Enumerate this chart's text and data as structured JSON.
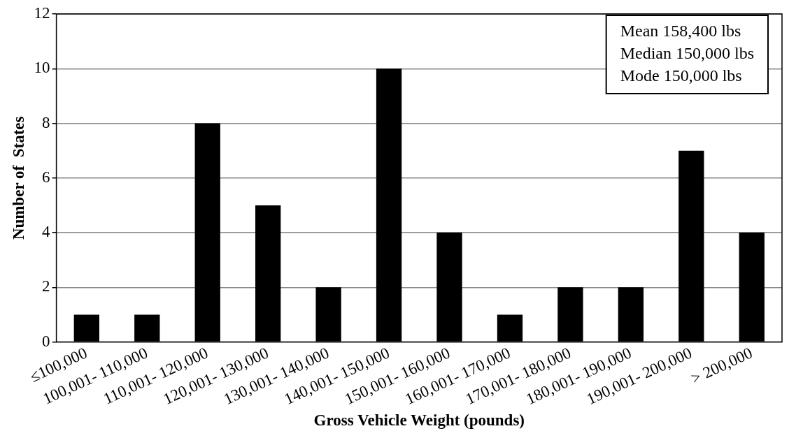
{
  "chart_data": {
    "type": "bar",
    "xlabel": "Gross Vehicle Weight (pounds)",
    "ylabel": "Number of  States",
    "categories": [
      "≤100,000",
      "100,001- 110,000",
      "110,001- 120,000",
      "120,001- 130,000",
      "130,001- 140,000",
      "140,001- 150,000",
      "150,001- 160,000",
      "160,001- 170,000",
      "170,001- 180,000",
      "180,001- 190,000",
      "190,001- 200,000",
      "> 200,000"
    ],
    "values": [
      1,
      1,
      8,
      5,
      2,
      10,
      4,
      1,
      2,
      2,
      7,
      4
    ],
    "color": "#000000",
    "ylim": [
      0,
      12
    ],
    "yticks": [
      0,
      2,
      4,
      6,
      8,
      10,
      12
    ],
    "grid": "y",
    "legend": false,
    "annotations": [
      "Mean 158,400 lbs",
      "Median 150,000 lbs",
      "Mode 150,000 lbs"
    ]
  }
}
